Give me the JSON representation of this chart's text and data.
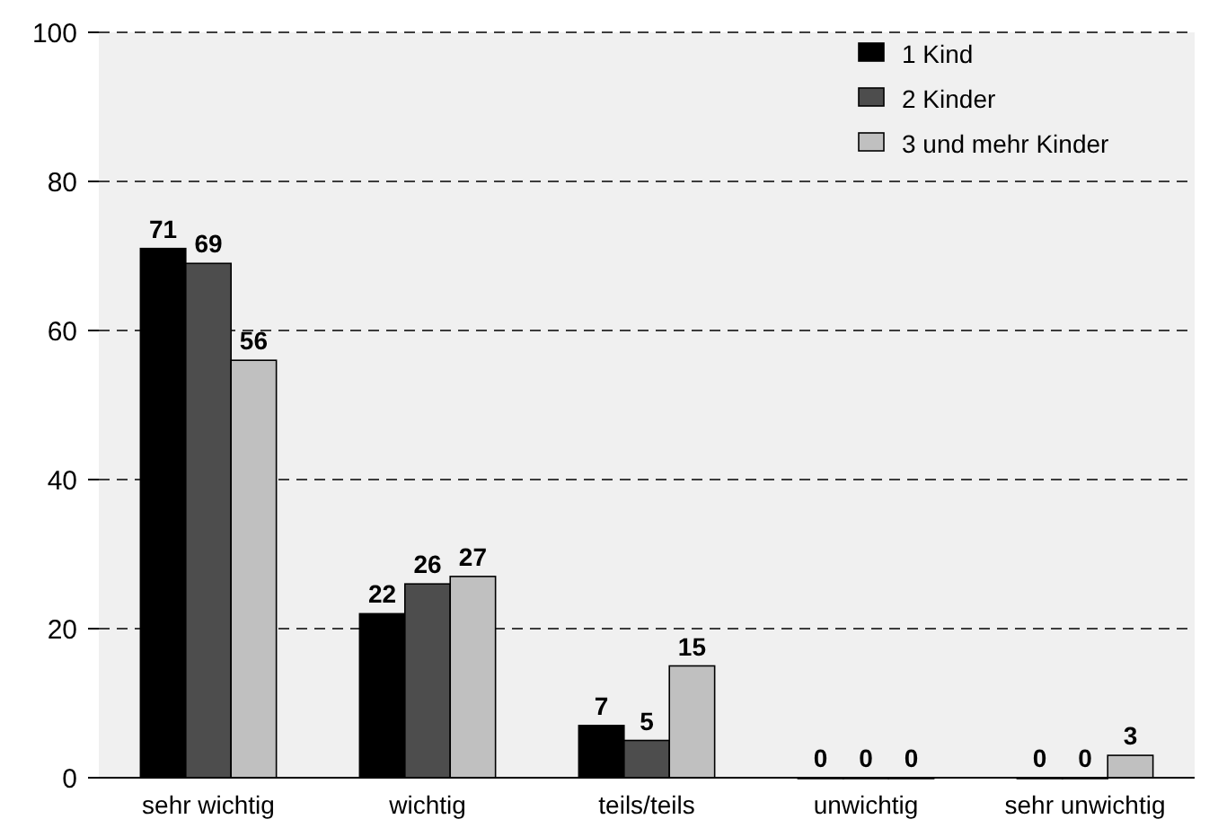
{
  "chart_data": {
    "type": "bar",
    "categories": [
      "sehr wichtig",
      "wichtig",
      "teils/teils",
      "unwichtig",
      "sehr unwichtig"
    ],
    "series": [
      {
        "name": "1 Kind",
        "color": "#000000",
        "values": [
          71,
          22,
          7,
          0,
          0
        ]
      },
      {
        "name": "2 Kinder",
        "color": "#4d4d4d",
        "values": [
          69,
          26,
          5,
          0,
          0
        ]
      },
      {
        "name": "3 und mehr Kinder",
        "color": "#c0c0c0",
        "values": [
          56,
          27,
          15,
          0,
          3
        ]
      }
    ],
    "ylim": [
      0,
      100
    ],
    "yticks": [
      0,
      20,
      40,
      60,
      80,
      100
    ],
    "grid": "y",
    "legend": "top right",
    "data_labels": true
  }
}
